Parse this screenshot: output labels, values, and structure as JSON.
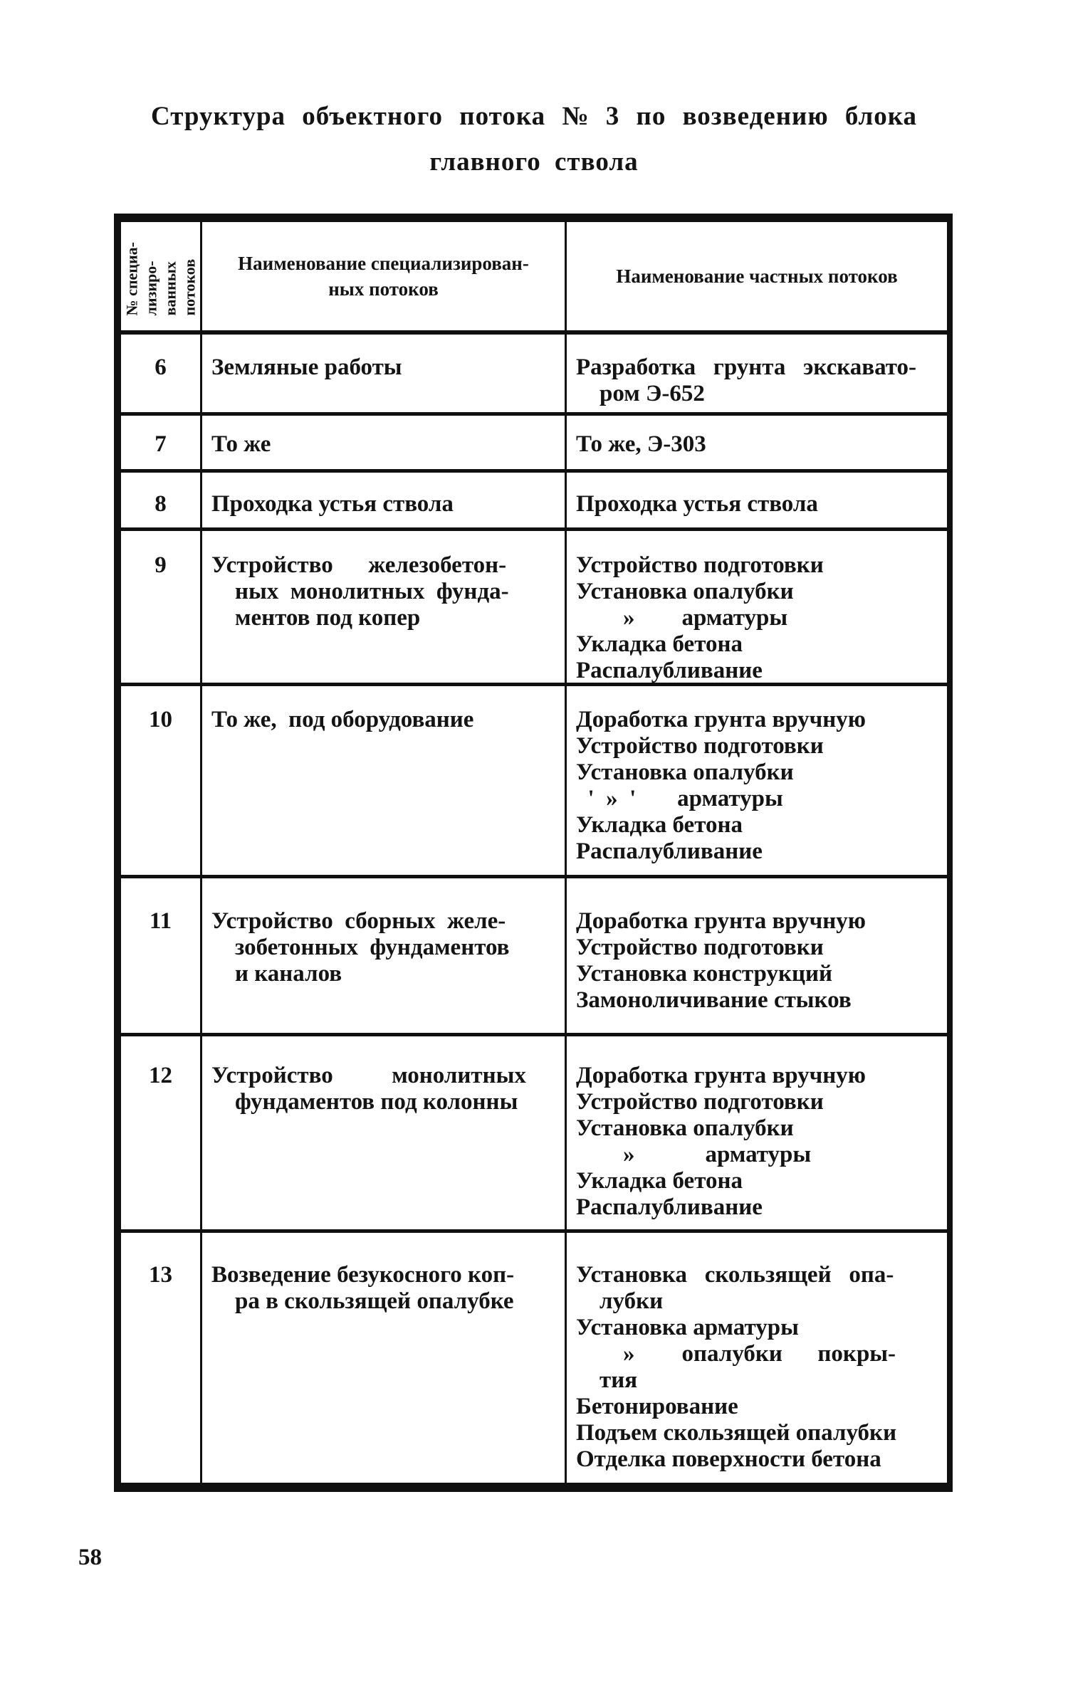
{
  "page": {
    "title_line1": "Структура объектного потока № 3 по возведению блока",
    "title_line2": "главного ствола",
    "number": "58"
  },
  "colors": {
    "ink": "#141414",
    "paper": "#ffffff"
  },
  "table": {
    "header": {
      "col1": "№ специа-\nлизиро-\nванных\nпотоков",
      "col2": "Наименование специализирован-\nных потоков",
      "col3": "Наименование частных потоков"
    },
    "rows": [
      {
        "num": "6",
        "specialized": "Земляные работы",
        "particular": "Разработка   грунта   экскавато-\n    ром Э-652"
      },
      {
        "num": "7",
        "specialized": "То же",
        "particular": "То же, Э-303"
      },
      {
        "num": "8",
        "specialized": "Проходка устья ствола",
        "particular": "Проходка устья ствола"
      },
      {
        "num": "9",
        "specialized": "Устройство      железобетон-\n    ных  монолитных  фунда-\n    ментов под копер",
        "particular": "Устройство подготовки\nУстановка опалубки\n        »        арматуры\nУкладка бетона\nРаспалубливание"
      },
      {
        "num": "10",
        "specialized": "То же,  под оборудование",
        "particular": "Доработка грунта вручную\nУстройство подготовки\nУстановка опалубки\n  '  »  '       арматуры\nУкладка бетона\nРаспалубливание"
      },
      {
        "num": "11",
        "specialized": "Устройство  сборных  желе-\n    зобетонных  фундаментов\n    и каналов",
        "particular": "Доработка грунта вручную\nУстройство подготовки\nУстановка конструкций\nЗамоноличивание стыков"
      },
      {
        "num": "12",
        "specialized": "Устройство          монолитных\n    фундаментов под колонны",
        "particular": "Доработка грунта вручную\nУстройство подготовки\nУстановка опалубки\n        »            арматуры\nУкладка бетона\nРаспалубливание"
      },
      {
        "num": "13",
        "specialized": "Возведение безукосного коп-\n    ра в скользящей опалубке",
        "particular": "Установка   скользящей   опа-\n    лубки\nУстановка арматуры\n        »        опалубки      покры-\n    тия\nБетонирование\nПодъем скользящей опалубки\nОтделка поверхности бетона"
      }
    ]
  }
}
